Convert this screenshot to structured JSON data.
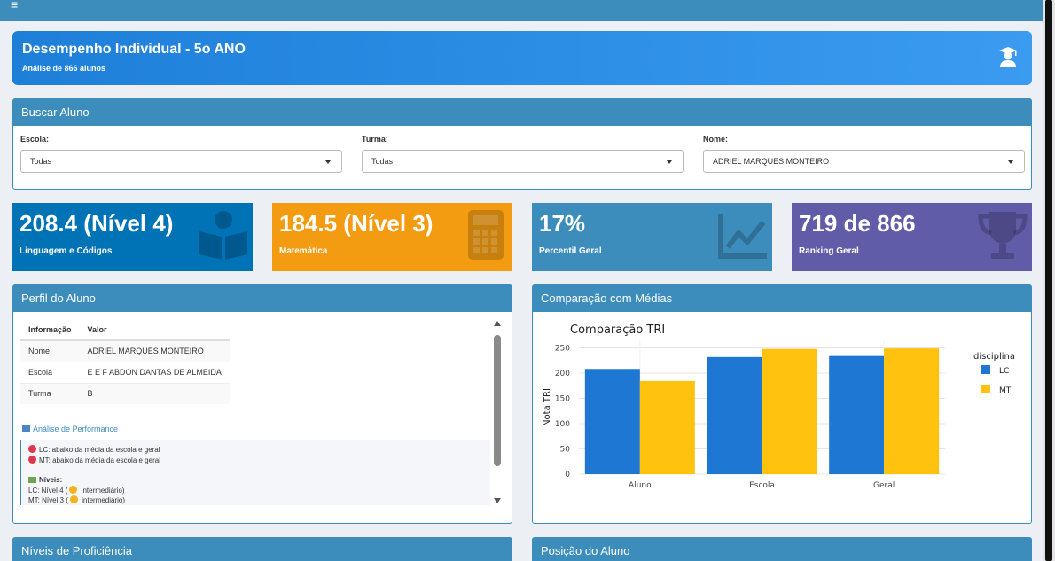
{
  "header": {
    "title": "Desempenho Individual - 5o ANO",
    "subtitle": "Análise de 866 alunos"
  },
  "search": {
    "title": "Buscar Aluno",
    "escola_label": "Escola:",
    "escola_value": "Todas",
    "turma_label": "Turma:",
    "turma_value": "Todas",
    "nome_label": "Nome:",
    "nome_value": "ADRIEL MARQUES MONTEIRO"
  },
  "kpis": [
    {
      "value": "208.4 (Nível 4)",
      "label": "Linguagem e Códigos",
      "color": "#0073b7",
      "icon": "book-reader-icon"
    },
    {
      "value": "184.5 (Nível 3)",
      "label": "Matemática",
      "color": "#f39c12",
      "icon": "calculator-icon"
    },
    {
      "value": "17%",
      "label": "Percentil Geral",
      "color": "#3c8dbc",
      "icon": "line-chart-icon"
    },
    {
      "value": "719 de 866",
      "label": "Ranking Geral",
      "color": "#605ca8",
      "icon": "trophy-icon"
    }
  ],
  "perfil": {
    "title": "Perfil do Aluno",
    "table_headers": [
      "Informação",
      "Valor"
    ],
    "rows": [
      [
        "Nome",
        "ADRIEL MARQUES MONTEIRO"
      ],
      [
        "Escola",
        "E E F ABDON DANTAS DE ALMEIDA"
      ],
      [
        "Turma",
        "B"
      ]
    ],
    "analysis_title": "Análise de Performance",
    "lc_text": "LC: abaixo da média da escola e geral",
    "mt_text": "MT: abaixo da média da escola e geral",
    "niveis_title": "Níveis:",
    "lc_nivel_prefix": "LC: Nível 4 (",
    "lc_nivel_suffix": " intermediário)",
    "mt_nivel_prefix": "MT: Nível 3 (",
    "mt_nivel_suffix": " intermediário)"
  },
  "comparacao": {
    "title": "Comparação com Médias"
  },
  "chart_data": {
    "type": "bar",
    "title": "Comparação TRI",
    "categories": [
      "Aluno",
      "Escola",
      "Geral"
    ],
    "series": [
      {
        "name": "LC",
        "values": [
          208.4,
          232,
          234
        ],
        "color": "#1f77d4"
      },
      {
        "name": "MT",
        "values": [
          184.5,
          248,
          249
        ],
        "color": "#ffc20e"
      }
    ],
    "ylabel": "Nota TRI",
    "xlabel": "",
    "ylim": [
      0,
      265
    ],
    "yticks": [
      0,
      50,
      100,
      150,
      200,
      250
    ],
    "legend_title": "disciplina",
    "legend_position": "right",
    "grid": true
  },
  "niveis": {
    "title": "Níveis de Proficiência"
  },
  "posicao": {
    "title": "Posição do Aluno"
  }
}
